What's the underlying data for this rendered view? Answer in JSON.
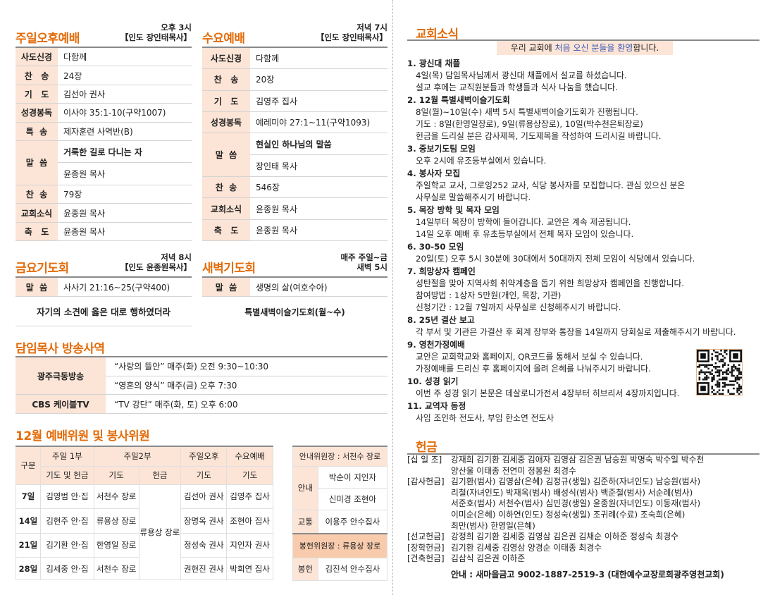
{
  "sunday_afternoon": {
    "title": "주일오후예배",
    "time": "오후 3시",
    "leader": "【인도 장인태목사】",
    "rows": [
      {
        "label": "사도신경",
        "value": "다함께"
      },
      {
        "label": "찬   송",
        "value": "24장"
      },
      {
        "label": "기   도",
        "value": "김선아 권사"
      },
      {
        "label": "성경봉독",
        "value": "이사야 35:1-10(구약1007)"
      },
      {
        "label": "특  송",
        "value": "제자훈련 사역반(B)"
      },
      {
        "label": "말  씀",
        "value": "거룩한 길로 다니는 자",
        "sub": "윤종원 목사"
      },
      {
        "label": "찬  송",
        "value": "79장"
      },
      {
        "label": "교회소식",
        "value": "윤종원 목사"
      },
      {
        "label": "축   도",
        "value": "윤종원 목사"
      }
    ]
  },
  "wednesday": {
    "title": "수요예배",
    "time": "저녁 7시",
    "leader": "【인도 장인태목사】",
    "rows": [
      {
        "label": "사도신경",
        "value": "다함께"
      },
      {
        "label": "찬   송",
        "value": "20장"
      },
      {
        "label": "기   도",
        "value": "김영주 집사"
      },
      {
        "label": "성경봉독",
        "value": "예레미야 27:1~11(구약1093)"
      },
      {
        "label": "말  씀",
        "value": "현실인 하나님의 말씀",
        "sub": "장인태 목사"
      },
      {
        "label": "찬  송",
        "value": "546장"
      },
      {
        "label": "교회소식",
        "value": "윤종원 목사"
      },
      {
        "label": "축   도",
        "value": "윤종원 목사"
      }
    ]
  },
  "friday": {
    "title": "금요기도회",
    "time": "저녁 8시",
    "leader": "【인도 윤종원목사】",
    "label": "말  씀",
    "value": "사사기 21:16~25(구약400)",
    "sermon": "자기의 소견에 옳은 대로 행하였더라"
  },
  "dawn": {
    "title": "새벽기도회",
    "time": "매주 주일~금",
    "time2": "새벽 5시",
    "label": "말  씀",
    "value": "생명의 삶(여호수아)",
    "note": "특별새벽이슬기도회(월~수)"
  },
  "broadcast": {
    "title": "담임목사 방송사역",
    "rows": [
      {
        "label": "광주극동방송",
        "lines": [
          "“사랑의 뜰안” 매주(화) 오전 9:30~10:30",
          "“영혼의 양식” 매주(금) 오후 7:30"
        ]
      },
      {
        "label": "CBS 케이블TV",
        "lines": [
          "“TV 강단” 매주(화, 토) 오후 6:00"
        ]
      }
    ]
  },
  "roster": {
    "title": "12월 예배위원 및 봉사위원",
    "header1": [
      "구분",
      "주일 1부",
      "주일2부",
      "주일오후",
      "수요예배"
    ],
    "header2": [
      "기도 및 헌금",
      "기도",
      "헌금",
      "기도",
      "기도"
    ],
    "offering_shared": "류용상 장로",
    "rows": [
      [
        "7일",
        "김영범 안·집",
        "서천수 장로",
        "김선아 권사",
        "김영주 집사"
      ],
      [
        "14일",
        "김현주 안·집",
        "류용상 장로",
        "장명옥 권사",
        "조현아 집사"
      ],
      [
        "21일",
        "김기환 안·집",
        "한영일 장로",
        "정성숙 권사",
        "지인자 권사"
      ],
      [
        "28일",
        "김세중 안·집",
        "서천수 장로",
        "권현진 권사",
        "박희연 집사"
      ]
    ],
    "usher_head": "안내위원장 : 서천수 장로",
    "usher_label": "안내",
    "ushers": [
      "박순이 지인자",
      "신미경 조현아"
    ],
    "traffic_label": "교통",
    "traffic": "이용주 안수집사",
    "offer_head": "봉헌위원장 : 류용상 장로",
    "offer_label": "봉헌",
    "offer": "김진석 안수집사"
  },
  "news": {
    "title": "교회소식",
    "welcome": {
      "pre": "우리 교회에 ",
      "highlight": "처음 오신 분들을 환영",
      "post": "합니다."
    },
    "items": [
      {
        "h": "1. 광신대 채플",
        "lines": [
          "4일(목) 담임목사님께서 광신대 채플에서 설교를 하셨습니다.",
          "설교 후에는 교직원분들과 학생들과 식사 나눔을 했습니다."
        ]
      },
      {
        "h": "2. 12월 특별새벽이슬기도회",
        "lines": [
          "8일(월)~10일(수) 새벽 5시 특별새벽이슬기도회가 진행됩니다.",
          "기도 : 8일(한영일장로), 9일(류용상장로), 10일(박수천은퇴장로)",
          "헌금을 드리실 분은 감사제목, 기도제목을 작성하여 드리시길 바랍니다."
        ]
      },
      {
        "h": "3. 중보기도팀 모임",
        "lines": [
          "오후 2시에 유조등부실에서 있습니다."
        ]
      },
      {
        "h": "4. 봉사자 모집",
        "lines": [
          "주일학교 교사, 그로잉252 교사, 식당 봉사자를 모집합니다. 관심 있으신 분은",
          "사무실로 말씀해주시기 바랍니다."
        ]
      },
      {
        "h": "5. 목장 방학 및 목자 모임",
        "lines": [
          "14일부터 목장이 방학에 들어갑니다. 교안은 계속 제공됩니다.",
          "14일 오후 예배 후 유초등부실에서 전체 목자 모임이 있습니다."
        ]
      },
      {
        "h": "6. 30-50 모임",
        "lines": [
          "20일(토) 오후 5시 30분에 30대에서 50대까지 전체 모임이 식당에서 있습니다."
        ]
      },
      {
        "h": "7. 희망상자 캠페인",
        "lines": [
          "성탄절을 맞아 지역사회 취약계층을 돕기 위한 희망상자 캠페인을 진행합니다.",
          "참여방법 : 1상자 5만원(개인, 목장, 기관)",
          "신청기간 : 12월 7일까지 사무실로 신청해주시기 바랍니다."
        ]
      },
      {
        "h": "8. 25년 결산 보고",
        "lines": [
          "각 부서 및 기관은 가결산 후 회계 장부와 통장을 14일까지 당회실로 제출해주시기 바랍니다."
        ]
      },
      {
        "h": "9. 영천가정예배",
        "lines": [
          "교안은 교회학교와 홈페이지, QR코드를 통해서 보실 수 있습니다.",
          "가정예배를 드리신 후 홈페이지에 올려 은혜를 나눠주시기 바랍니다."
        ]
      },
      {
        "h": "10. 성경 읽기",
        "lines": [
          "이번 주 성경 읽기 본문은 데살로니가전서 4장부터 히브리서 4장까지입니다."
        ]
      },
      {
        "h": "11. 교역자 동정",
        "lines": [
          "사임 조인하 전도사, 부임 한소연 전도사"
        ]
      }
    ]
  },
  "offering": {
    "title": "헌금",
    "groups": [
      {
        "k": "[십 일 조]",
        "lines": [
          "강재희 김기환 김세중 김애자 김영삼 김은권 남승원 박명숙 박수일 박수천",
          "양산울 이태종 전연미 정봉원 최경수"
        ]
      },
      {
        "k": "[감사헌금]",
        "lines": [
          "김기환(범사) 김영삼(은혜) 김정규(생일) 김준하(자녀인도) 남승원(범사)",
          "리철(자녀인도) 박재옥(범사) 배성식(범사) 백준철(범사) 서순례(범사)",
          "서준호(범사) 서천수(범사) 심민경(생일) 윤종원(자녀인도) 이동재(범사)",
          "이미순(은혜) 이하연(인도) 정성숙(생일) 조귀례(수료) 조숙희(은혜)",
          "최만(범사) 한영일(은혜)"
        ]
      },
      {
        "k": "[선교헌금]",
        "lines": [
          "강정희 김기환 김세중 김영삼 김은권 김채순 이하준 정성숙 최경수"
        ]
      },
      {
        "k": "[장학헌금]",
        "lines": [
          "김기환 김세중 김영삼 양경순 이태종 최경수"
        ]
      },
      {
        "k": "[건축헌금]",
        "lines": [
          "김삼식 김은권 이하준"
        ]
      }
    ],
    "account": "안내 : 새마을금고 9002-1887-2519-3 (대한예수교장로회광주영천교회)"
  },
  "colors": {
    "accent": "#e46c0a",
    "peach": "#fce4d6",
    "highlight_text": "#3b5bb5"
  },
  "icons": {
    "qr": "qr-code-icon"
  }
}
